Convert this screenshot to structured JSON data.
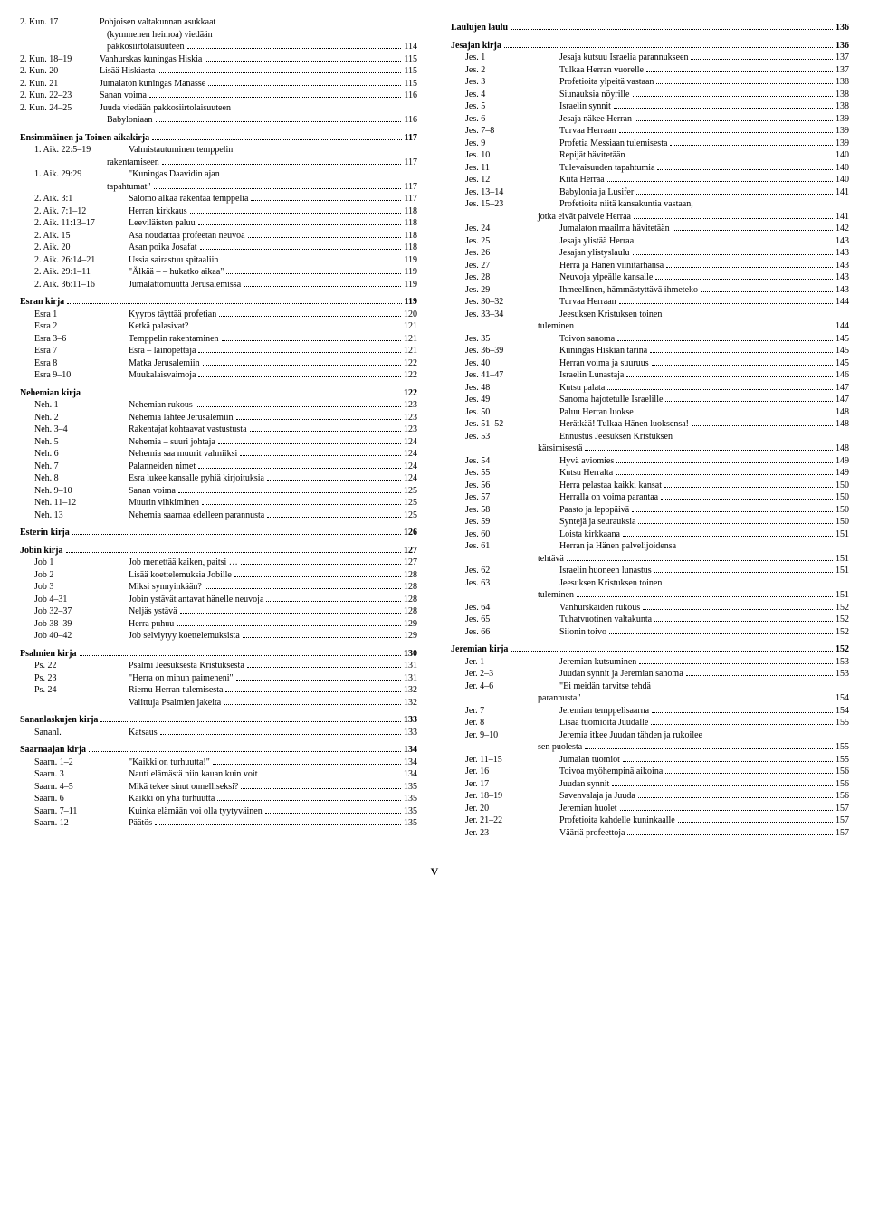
{
  "page_number": "V",
  "left": [
    {
      "type": "entry",
      "ref": "2. Kun. 17",
      "title": "Pohjoisen valtakunnan asukkaat",
      "noPage": true
    },
    {
      "type": "cont",
      "title": "(kymmenen heimoa) viedään",
      "noPage": true
    },
    {
      "type": "cont",
      "title": "pakkosiirtolaisuuteen",
      "page": "114"
    },
    {
      "type": "entry",
      "ref": "2. Kun. 18–19",
      "title": "Vanhurskas kuningas Hiskia",
      "page": "115"
    },
    {
      "type": "entry",
      "ref": "2. Kun. 20",
      "title": "Lisää Hiskiasta",
      "page": "115"
    },
    {
      "type": "entry",
      "ref": "2. Kun. 21",
      "title": "Jumalaton kuningas Manasse",
      "page": "115"
    },
    {
      "type": "entry",
      "ref": "2. Kun. 22–23",
      "title": "Sanan voima",
      "page": "116"
    },
    {
      "type": "entry",
      "ref": "2. Kun. 24–25",
      "title": "Juuda viedään pakkosiirtolaisuuteen",
      "noPage": true
    },
    {
      "type": "cont",
      "title": "Babyloniaan",
      "page": "116"
    },
    {
      "type": "section",
      "title": "Ensimmäinen ja Toinen aikakirja",
      "page": "117"
    },
    {
      "type": "entry",
      "ref": "1. Aik. 22:5–19",
      "title": "Valmistautuminen temppelin",
      "indent": true,
      "noPage": true
    },
    {
      "type": "cont",
      "title": "rakentamiseen",
      "page": "117"
    },
    {
      "type": "entry",
      "ref": "1. Aik. 29:29",
      "title": "\"Kuningas Daavidin ajan",
      "indent": true,
      "noPage": true
    },
    {
      "type": "cont",
      "title": "tapahtumat\"",
      "page": "117"
    },
    {
      "type": "entry",
      "ref": "2. Aik. 3:1",
      "title": "Salomo alkaa rakentaa temppeliä",
      "indent": true,
      "page": "117"
    },
    {
      "type": "entry",
      "ref": "2. Aik. 7:1–12",
      "title": "Herran kirkkaus",
      "indent": true,
      "page": "118"
    },
    {
      "type": "entry",
      "ref": "2. Aik. 11:13–17",
      "title": "Leeviläisten paluu",
      "indent": true,
      "page": "118"
    },
    {
      "type": "entry",
      "ref": "2. Aik. 15",
      "title": "Asa noudattaa profeetan neuvoa",
      "indent": true,
      "page": "118"
    },
    {
      "type": "entry",
      "ref": "2. Aik. 20",
      "title": "Asan poika Josafat",
      "indent": true,
      "page": "118"
    },
    {
      "type": "entry",
      "ref": "2. Aik. 26:14–21",
      "title": "Ussia sairastuu spitaaliin",
      "indent": true,
      "page": "119"
    },
    {
      "type": "entry",
      "ref": "2. Aik. 29:1–11",
      "title": "\"Älkää – – hukatko aikaa\"",
      "indent": true,
      "page": "119"
    },
    {
      "type": "entry",
      "ref": "2. Aik. 36:11–16",
      "title": "Jumalattomuutta Jerusalemissa",
      "indent": true,
      "page": "119"
    },
    {
      "type": "section",
      "title": "Esran kirja",
      "page": "119"
    },
    {
      "type": "entry",
      "ref": "Esra 1",
      "title": "Kyyros täyttää profetian",
      "indent": true,
      "page": "120"
    },
    {
      "type": "entry",
      "ref": "Esra 2",
      "title": "Ketkä palasivat?",
      "indent": true,
      "page": "121"
    },
    {
      "type": "entry",
      "ref": "Esra 3–6",
      "title": "Temppelin rakentaminen",
      "indent": true,
      "page": "121"
    },
    {
      "type": "entry",
      "ref": "Esra 7",
      "title": "Esra – lainopettaja",
      "indent": true,
      "page": "121"
    },
    {
      "type": "entry",
      "ref": "Esra 8",
      "title": "Matka Jerusalemiin",
      "indent": true,
      "page": "122"
    },
    {
      "type": "entry",
      "ref": "Esra 9–10",
      "title": "Muukalaisvaimoja",
      "indent": true,
      "page": "122"
    },
    {
      "type": "section",
      "title": "Nehemian kirja",
      "page": "122"
    },
    {
      "type": "entry",
      "ref": "Neh. 1",
      "title": "Nehemian rukous",
      "indent": true,
      "page": "123"
    },
    {
      "type": "entry",
      "ref": "Neh. 2",
      "title": "Nehemia lähtee Jerusalemiin",
      "indent": true,
      "page": "123"
    },
    {
      "type": "entry",
      "ref": "Neh. 3–4",
      "title": "Rakentajat kohtaavat vastustusta",
      "indent": true,
      "page": "123"
    },
    {
      "type": "entry",
      "ref": "Neh. 5",
      "title": "Nehemia – suuri johtaja",
      "indent": true,
      "page": "124"
    },
    {
      "type": "entry",
      "ref": "Neh. 6",
      "title": "Nehemia saa muurit valmiiksi",
      "indent": true,
      "page": "124"
    },
    {
      "type": "entry",
      "ref": "Neh. 7",
      "title": "Palanneiden nimet",
      "indent": true,
      "page": "124"
    },
    {
      "type": "entry",
      "ref": "Neh. 8",
      "title": "Esra lukee kansalle pyhiä kirjoituksia",
      "indent": true,
      "page": "124"
    },
    {
      "type": "entry",
      "ref": "Neh. 9–10",
      "title": "Sanan voima",
      "indent": true,
      "page": "125"
    },
    {
      "type": "entry",
      "ref": "Neh. 11–12",
      "title": "Muurin vihkiminen",
      "indent": true,
      "page": "125"
    },
    {
      "type": "entry",
      "ref": "Neh. 13",
      "title": "Nehemia saarnaa edelleen parannusta",
      "indent": true,
      "page": "125"
    },
    {
      "type": "section",
      "title": "Esterin kirja",
      "page": "126"
    },
    {
      "type": "section",
      "title": "Jobin kirja",
      "page": "127"
    },
    {
      "type": "entry",
      "ref": "Job 1",
      "title": "Job menettää kaiken, paitsi …",
      "indent": true,
      "page": "127"
    },
    {
      "type": "entry",
      "ref": "Job 2",
      "title": "Lisää koettelemuksia Jobille",
      "indent": true,
      "page": "128"
    },
    {
      "type": "entry",
      "ref": "Job 3",
      "title": "Miksi synnyinkään?",
      "indent": true,
      "page": "128"
    },
    {
      "type": "entry",
      "ref": "Job 4–31",
      "title": "Jobin ystävät antavat hänelle neuvoja",
      "indent": true,
      "page": "128"
    },
    {
      "type": "entry",
      "ref": "Job 32–37",
      "title": "Neljäs ystävä",
      "indent": true,
      "page": "128"
    },
    {
      "type": "entry",
      "ref": "Job 38–39",
      "title": "Herra puhuu",
      "indent": true,
      "page": "129"
    },
    {
      "type": "entry",
      "ref": "Job 40–42",
      "title": "Job selviytyy koettelemuksista",
      "indent": true,
      "page": "129"
    },
    {
      "type": "section",
      "title": "Psalmien kirja",
      "page": "130"
    },
    {
      "type": "entry",
      "ref": "Ps. 22",
      "title": "Psalmi Jeesuksesta Kristuksesta",
      "indent": true,
      "page": "131"
    },
    {
      "type": "entry",
      "ref": "Ps. 23",
      "title": "\"Herra on minun paimeneni\"",
      "indent": true,
      "page": "131"
    },
    {
      "type": "entry",
      "ref": "Ps. 24",
      "title": "Riemu Herran tulemisesta",
      "indent": true,
      "page": "132"
    },
    {
      "type": "entry",
      "ref": "",
      "title": "Valittuja Psalmien jakeita",
      "indent": true,
      "page": "132"
    },
    {
      "type": "section",
      "title": "Sananlaskujen kirja",
      "page": "133"
    },
    {
      "type": "entry",
      "ref": "Sananl.",
      "title": "Katsaus",
      "indent": true,
      "page": "133"
    },
    {
      "type": "section",
      "title": "Saarnaajan kirja",
      "page": "134"
    },
    {
      "type": "entry",
      "ref": "Saarn. 1–2",
      "title": "\"Kaikki on turhuutta!\"",
      "indent": true,
      "page": "134"
    },
    {
      "type": "entry",
      "ref": "Saarn. 3",
      "title": "Nauti elämästä niin kauan kuin voit",
      "indent": true,
      "page": "134"
    },
    {
      "type": "entry",
      "ref": "Saarn. 4–5",
      "title": "Mikä tekee sinut onnelliseksi?",
      "indent": true,
      "page": "135"
    },
    {
      "type": "entry",
      "ref": "Saarn. 6",
      "title": "Kaikki on yhä turhuutta",
      "indent": true,
      "page": "135"
    },
    {
      "type": "entry",
      "ref": "Saarn. 7–11",
      "title": "Kuinka elämään voi olla tyytyväinen",
      "indent": true,
      "page": "135"
    },
    {
      "type": "entry",
      "ref": "Saarn. 12",
      "title": "Päätös",
      "indent": true,
      "page": "135"
    }
  ],
  "right": [
    {
      "type": "section",
      "title": "Laulujen laulu",
      "page": "136"
    },
    {
      "type": "section",
      "title": "Jesajan kirja",
      "page": "136"
    },
    {
      "type": "entry",
      "ref": "Jes. 1",
      "title": "Jesaja kutsuu Israelia parannukseen",
      "indent": true,
      "page": "137"
    },
    {
      "type": "entry",
      "ref": "Jes. 2",
      "title": "Tulkaa Herran vuorelle",
      "indent": true,
      "page": "137"
    },
    {
      "type": "entry",
      "ref": "Jes. 3",
      "title": "Profetioita ylpeitä vastaan",
      "indent": true,
      "page": "138"
    },
    {
      "type": "entry",
      "ref": "Jes. 4",
      "title": "Siunauksia nöyrille",
      "indent": true,
      "page": "138"
    },
    {
      "type": "entry",
      "ref": "Jes. 5",
      "title": "Israelin synnit",
      "indent": true,
      "page": "138"
    },
    {
      "type": "entry",
      "ref": "Jes. 6",
      "title": "Jesaja näkee Herran",
      "indent": true,
      "page": "139"
    },
    {
      "type": "entry",
      "ref": "Jes. 7–8",
      "title": "Turvaa Herraan",
      "indent": true,
      "page": "139"
    },
    {
      "type": "entry",
      "ref": "Jes. 9",
      "title": "Profetia Messiaan tulemisesta",
      "indent": true,
      "page": "139"
    },
    {
      "type": "entry",
      "ref": "Jes. 10",
      "title": "Repijät hävitetään",
      "indent": true,
      "page": "140"
    },
    {
      "type": "entry",
      "ref": "Jes. 11",
      "title": "Tulevaisuuden tapahtumia",
      "indent": true,
      "page": "140"
    },
    {
      "type": "entry",
      "ref": "Jes. 12",
      "title": "Kiitä Herraa",
      "indent": true,
      "page": "140"
    },
    {
      "type": "entry",
      "ref": "Jes. 13–14",
      "title": "Babylonia ja Lusifer",
      "indent": true,
      "page": "141"
    },
    {
      "type": "entry",
      "ref": "Jes. 15–23",
      "title": "Profetioita niitä kansakuntia vastaan,",
      "indent": true,
      "noPage": true
    },
    {
      "type": "cont",
      "title": "jotka eivät palvele Herraa",
      "page": "141"
    },
    {
      "type": "entry",
      "ref": "Jes. 24",
      "title": "Jumalaton maailma hävitetään",
      "indent": true,
      "page": "142"
    },
    {
      "type": "entry",
      "ref": "Jes. 25",
      "title": "Jesaja ylistää Herraa",
      "indent": true,
      "page": "143"
    },
    {
      "type": "entry",
      "ref": "Jes. 26",
      "title": "Jesajan ylistyslaulu",
      "indent": true,
      "page": "143"
    },
    {
      "type": "entry",
      "ref": "Jes. 27",
      "title": "Herra ja Hänen viinitarhansa",
      "indent": true,
      "page": "143"
    },
    {
      "type": "entry",
      "ref": "Jes. 28",
      "title": "Neuvoja ylpeälle kansalle",
      "indent": true,
      "page": "143"
    },
    {
      "type": "entry",
      "ref": "Jes. 29",
      "title": "Ihmeellinen, hämmästyttävä ihmeteko",
      "indent": true,
      "page": "143"
    },
    {
      "type": "entry",
      "ref": "Jes. 30–32",
      "title": "Turvaa Herraan",
      "indent": true,
      "page": "144"
    },
    {
      "type": "entry",
      "ref": "Jes. 33–34",
      "title": "Jeesuksen Kristuksen toinen",
      "indent": true,
      "noPage": true
    },
    {
      "type": "cont",
      "title": "tuleminen",
      "page": "144"
    },
    {
      "type": "entry",
      "ref": "Jes. 35",
      "title": "Toivon sanoma",
      "indent": true,
      "page": "145"
    },
    {
      "type": "entry",
      "ref": "Jes. 36–39",
      "title": "Kuningas Hiskian tarina",
      "indent": true,
      "page": "145"
    },
    {
      "type": "entry",
      "ref": "Jes. 40",
      "title": "Herran voima ja suuruus",
      "indent": true,
      "page": "145"
    },
    {
      "type": "entry",
      "ref": "Jes. 41–47",
      "title": "Israelin Lunastaja",
      "indent": true,
      "page": "146"
    },
    {
      "type": "entry",
      "ref": "Jes. 48",
      "title": "Kutsu palata",
      "indent": true,
      "page": "147"
    },
    {
      "type": "entry",
      "ref": "Jes. 49",
      "title": "Sanoma hajotetulle Israelille",
      "indent": true,
      "page": "147"
    },
    {
      "type": "entry",
      "ref": "Jes. 50",
      "title": "Paluu Herran luokse",
      "indent": true,
      "page": "148"
    },
    {
      "type": "entry",
      "ref": "Jes. 51–52",
      "title": "Herätkää! Tulkaa Hänen luoksensa!",
      "indent": true,
      "page": "148"
    },
    {
      "type": "entry",
      "ref": "Jes. 53",
      "title": "Ennustus Jeesuksen Kristuksen",
      "indent": true,
      "noPage": true
    },
    {
      "type": "cont",
      "title": "kärsimisestä",
      "page": "148"
    },
    {
      "type": "entry",
      "ref": "Jes. 54",
      "title": "Hyvä aviomies",
      "indent": true,
      "page": "149"
    },
    {
      "type": "entry",
      "ref": "Jes. 55",
      "title": "Kutsu Herralta",
      "indent": true,
      "page": "149"
    },
    {
      "type": "entry",
      "ref": "Jes. 56",
      "title": "Herra pelastaa kaikki kansat",
      "indent": true,
      "page": "150"
    },
    {
      "type": "entry",
      "ref": "Jes. 57",
      "title": "Herralla on voima parantaa",
      "indent": true,
      "page": "150"
    },
    {
      "type": "entry",
      "ref": "Jes. 58",
      "title": "Paasto ja lepopäivä",
      "indent": true,
      "page": "150"
    },
    {
      "type": "entry",
      "ref": "Jes. 59",
      "title": "Syntejä ja seurauksia",
      "indent": true,
      "page": "150"
    },
    {
      "type": "entry",
      "ref": "Jes. 60",
      "title": "Loista kirkkaana",
      "indent": true,
      "page": "151"
    },
    {
      "type": "entry",
      "ref": "Jes. 61",
      "title": "Herran ja Hänen palvelijoidensa",
      "indent": true,
      "noPage": true
    },
    {
      "type": "cont",
      "title": "tehtävä",
      "page": "151"
    },
    {
      "type": "entry",
      "ref": "Jes. 62",
      "title": "Israelin huoneen lunastus",
      "indent": true,
      "page": "151"
    },
    {
      "type": "entry",
      "ref": "Jes. 63",
      "title": "Jeesuksen Kristuksen toinen",
      "indent": true,
      "noPage": true
    },
    {
      "type": "cont",
      "title": "tuleminen",
      "page": "151"
    },
    {
      "type": "entry",
      "ref": "Jes. 64",
      "title": "Vanhurskaiden rukous",
      "indent": true,
      "page": "152"
    },
    {
      "type": "entry",
      "ref": "Jes. 65",
      "title": "Tuhatvuotinen valtakunta",
      "indent": true,
      "page": "152"
    },
    {
      "type": "entry",
      "ref": "Jes. 66",
      "title": "Siionin toivo",
      "indent": true,
      "page": "152"
    },
    {
      "type": "section",
      "title": "Jeremian kirja",
      "page": "152"
    },
    {
      "type": "entry",
      "ref": "Jer. 1",
      "title": "Jeremian kutsuminen",
      "indent": true,
      "page": "153"
    },
    {
      "type": "entry",
      "ref": "Jer. 2–3",
      "title": "Juudan synnit ja Jeremian sanoma",
      "indent": true,
      "page": "153"
    },
    {
      "type": "entry",
      "ref": "Jer. 4–6",
      "title": "\"Ei meidän tarvitse tehdä",
      "indent": true,
      "noPage": true
    },
    {
      "type": "cont",
      "title": "parannusta\"",
      "page": "154"
    },
    {
      "type": "entry",
      "ref": "Jer. 7",
      "title": "Jeremian temppelisaarna",
      "indent": true,
      "page": "154"
    },
    {
      "type": "entry",
      "ref": "Jer. 8",
      "title": "Lisää tuomioita Juudalle",
      "indent": true,
      "page": "155"
    },
    {
      "type": "entry",
      "ref": "Jer. 9–10",
      "title": "Jeremia itkee Juudan tähden ja rukoilee",
      "indent": true,
      "noPage": true
    },
    {
      "type": "cont",
      "title": "sen puolesta",
      "page": "155"
    },
    {
      "type": "entry",
      "ref": "Jer. 11–15",
      "title": "Jumalan tuomiot",
      "indent": true,
      "page": "155"
    },
    {
      "type": "entry",
      "ref": "Jer. 16",
      "title": "Toivoa myöhempinä aikoina",
      "indent": true,
      "page": "156"
    },
    {
      "type": "entry",
      "ref": "Jer. 17",
      "title": "Juudan synnit",
      "indent": true,
      "page": "156"
    },
    {
      "type": "entry",
      "ref": "Jer. 18–19",
      "title": "Savenvalaja ja Juuda",
      "indent": true,
      "page": "156"
    },
    {
      "type": "entry",
      "ref": "Jer. 20",
      "title": "Jeremian huolet",
      "indent": true,
      "page": "157"
    },
    {
      "type": "entry",
      "ref": "Jer. 21–22",
      "title": "Profetioita kahdelle kuninkaalle",
      "indent": true,
      "page": "157"
    },
    {
      "type": "entry",
      "ref": "Jer. 23",
      "title": "Vääriä profeettoja",
      "indent": true,
      "page": "157"
    }
  ]
}
